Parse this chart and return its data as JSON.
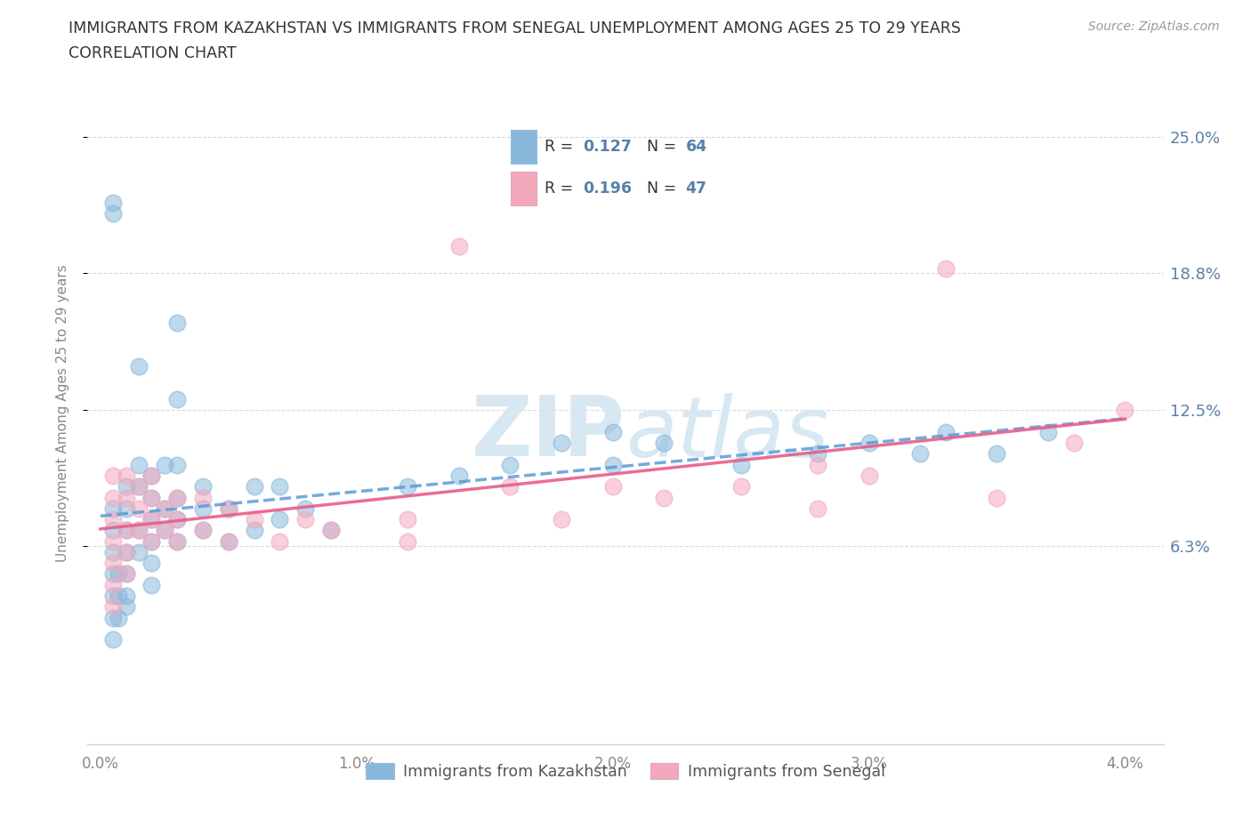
{
  "title_line1": "IMMIGRANTS FROM KAZAKHSTAN VS IMMIGRANTS FROM SENEGAL UNEMPLOYMENT AMONG AGES 25 TO 29 YEARS",
  "title_line2": "CORRELATION CHART",
  "source_text": "Source: ZipAtlas.com",
  "ylabel": "Unemployment Among Ages 25 to 29 years",
  "legend_label_1": "Immigrants from Kazakhstan",
  "legend_label_2": "Immigrants from Senegal",
  "R1": "0.127",
  "N1": "64",
  "R2": "0.196",
  "N2": "47",
  "xlim": [
    -0.0005,
    0.0415
  ],
  "ylim": [
    -0.028,
    0.275
  ],
  "yticks": [
    0.063,
    0.125,
    0.188,
    0.25
  ],
  "ytick_labels": [
    "6.3%",
    "12.5%",
    "18.8%",
    "25.0%"
  ],
  "xticks": [
    0.0,
    0.01,
    0.02,
    0.03,
    0.04
  ],
  "xtick_labels": [
    "0.0%",
    "1.0%",
    "2.0%",
    "3.0%",
    "4.0%"
  ],
  "color_kazakhstan": "#89b8dd",
  "color_senegal": "#f4a8bc",
  "trendline_color_kazakhstan": "#5b9bd5",
  "trendline_color_senegal": "#e85d8a",
  "watermark_color": "#d8e8f3",
  "axis_label_color": "#5a7fa8",
  "tick_label_color": "#888888",
  "title_color": "#333333",
  "source_color": "#999999",
  "grid_color": "#d0d0d0",
  "kaz_x": [
    0.0005,
    0.0005,
    0.0005,
    0.0005,
    0.0005,
    0.0005,
    0.0005,
    0.0007,
    0.0007,
    0.0007,
    0.001,
    0.001,
    0.001,
    0.001,
    0.001,
    0.001,
    0.001,
    0.0015,
    0.0015,
    0.0015,
    0.0015,
    0.002,
    0.002,
    0.002,
    0.002,
    0.002,
    0.002,
    0.0025,
    0.0025,
    0.0025,
    0.003,
    0.003,
    0.003,
    0.003,
    0.004,
    0.004,
    0.004,
    0.005,
    0.005,
    0.006,
    0.006,
    0.007,
    0.007,
    0.008,
    0.009,
    0.012,
    0.014,
    0.016,
    0.018,
    0.02,
    0.02,
    0.022,
    0.025,
    0.028,
    0.03,
    0.032,
    0.033,
    0.035,
    0.037,
    0.0005,
    0.0005,
    0.003,
    0.0015,
    0.003
  ],
  "kaz_y": [
    0.07,
    0.05,
    0.04,
    0.03,
    0.02,
    0.06,
    0.08,
    0.05,
    0.04,
    0.03,
    0.07,
    0.06,
    0.05,
    0.04,
    0.035,
    0.08,
    0.09,
    0.07,
    0.06,
    0.09,
    0.1,
    0.075,
    0.065,
    0.055,
    0.045,
    0.085,
    0.095,
    0.07,
    0.08,
    0.1,
    0.065,
    0.075,
    0.085,
    0.1,
    0.07,
    0.08,
    0.09,
    0.065,
    0.08,
    0.07,
    0.09,
    0.075,
    0.09,
    0.08,
    0.07,
    0.09,
    0.095,
    0.1,
    0.11,
    0.1,
    0.115,
    0.11,
    0.1,
    0.105,
    0.11,
    0.105,
    0.115,
    0.105,
    0.115,
    0.22,
    0.215,
    0.165,
    0.145,
    0.13
  ],
  "sen_x": [
    0.0005,
    0.0005,
    0.0005,
    0.0005,
    0.0005,
    0.0005,
    0.0005,
    0.001,
    0.001,
    0.001,
    0.001,
    0.001,
    0.0015,
    0.0015,
    0.0015,
    0.002,
    0.002,
    0.002,
    0.002,
    0.0025,
    0.0025,
    0.003,
    0.003,
    0.003,
    0.004,
    0.004,
    0.005,
    0.005,
    0.006,
    0.007,
    0.008,
    0.009,
    0.012,
    0.012,
    0.014,
    0.016,
    0.018,
    0.02,
    0.022,
    0.025,
    0.028,
    0.03,
    0.033,
    0.035,
    0.038,
    0.04,
    0.028
  ],
  "sen_y": [
    0.075,
    0.065,
    0.055,
    0.045,
    0.035,
    0.085,
    0.095,
    0.07,
    0.06,
    0.05,
    0.085,
    0.095,
    0.07,
    0.08,
    0.09,
    0.065,
    0.075,
    0.085,
    0.095,
    0.07,
    0.08,
    0.065,
    0.075,
    0.085,
    0.07,
    0.085,
    0.065,
    0.08,
    0.075,
    0.065,
    0.075,
    0.07,
    0.065,
    0.075,
    0.2,
    0.09,
    0.075,
    0.09,
    0.085,
    0.09,
    0.08,
    0.095,
    0.19,
    0.085,
    0.11,
    0.125,
    0.1
  ]
}
